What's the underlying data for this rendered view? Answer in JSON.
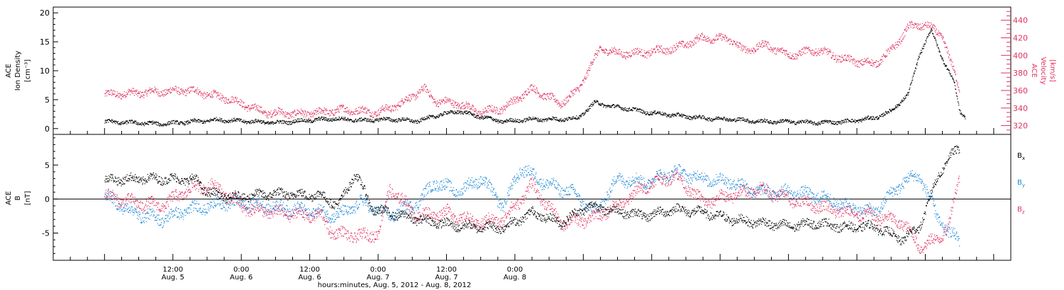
{
  "chart_data": [
    {
      "type": "scatter",
      "panel": "top",
      "title": "",
      "ylabel_left": [
        "ACE",
        "Ion Density",
        "[cm⁻³]"
      ],
      "ylabel_right": [
        "ACE",
        "Velocity",
        "[km/s]"
      ],
      "ylim_left": [
        -1,
        21
      ],
      "ylim_right": [
        310,
        455
      ],
      "left_ticks": [
        "0",
        "5",
        "10",
        "15",
        "20"
      ],
      "left_tick_values": [
        0,
        5,
        10,
        15,
        20
      ],
      "right_ticks": [
        "320",
        "340",
        "360",
        "380",
        "400",
        "420",
        "440"
      ],
      "right_tick_values": [
        320,
        340,
        360,
        380,
        400,
        420,
        440
      ],
      "series": [
        {
          "name": "Ion Density",
          "axis": "left",
          "color": "#000000",
          "keyframes": [
            [
              0,
              1.2
            ],
            [
              10,
              0.8
            ],
            [
              20,
              1.5
            ],
            [
              30,
              1.0
            ],
            [
              40,
              1.7
            ],
            [
              45,
              1.4
            ],
            [
              50,
              1.6
            ],
            [
              55,
              1.3
            ],
            [
              58,
              2.2
            ],
            [
              62,
              3.0
            ],
            [
              66,
              2.0
            ],
            [
              70,
              1.2
            ],
            [
              75,
              1.6
            ],
            [
              80,
              1.6
            ],
            [
              83,
              1.8
            ],
            [
              86,
              4.5
            ],
            [
              89,
              3.8
            ],
            [
              92,
              3.4
            ],
            [
              95,
              2.8
            ],
            [
              100,
              2.3
            ],
            [
              105,
              1.8
            ],
            [
              110,
              1.6
            ],
            [
              115,
              1.2
            ],
            [
              120,
              1.2
            ],
            [
              125,
              1.0
            ],
            [
              130,
              1.2
            ],
            [
              135,
              1.8
            ],
            [
              138,
              3.0
            ],
            [
              141,
              6.0
            ],
            [
              143,
              13.0
            ],
            [
              145,
              17.0
            ],
            [
              147,
              12.0
            ],
            [
              149,
              8.0
            ],
            [
              150,
              3.0
            ],
            [
              151,
              2.0
            ]
          ]
        },
        {
          "name": "Velocity",
          "axis": "right",
          "color": "#e0325f",
          "keyframes": [
            [
              0,
              355
            ],
            [
              8,
              358
            ],
            [
              15,
              360
            ],
            [
              22,
              350
            ],
            [
              28,
              335
            ],
            [
              35,
              333
            ],
            [
              42,
              338
            ],
            [
              48,
              335
            ],
            [
              52,
              345
            ],
            [
              56,
              362
            ],
            [
              58,
              348
            ],
            [
              62,
              345
            ],
            [
              66,
              335
            ],
            [
              70,
              340
            ],
            [
              75,
              362
            ],
            [
              80,
              345
            ],
            [
              83,
              360
            ],
            [
              85,
              385
            ],
            [
              87,
              408
            ],
            [
              90,
              402
            ],
            [
              95,
              403
            ],
            [
              100,
              408
            ],
            [
              105,
              420
            ],
            [
              110,
              418
            ],
            [
              112,
              405
            ],
            [
              116,
              412
            ],
            [
              120,
              400
            ],
            [
              125,
              406
            ],
            [
              130,
              395
            ],
            [
              135,
              390
            ],
            [
              138,
              405
            ],
            [
              141,
              432
            ],
            [
              144,
              435
            ],
            [
              147,
              422
            ],
            [
              149,
              380
            ],
            [
              150,
              360
            ]
          ]
        }
      ]
    },
    {
      "type": "scatter",
      "panel": "bottom",
      "title": "",
      "ylabel_left": [
        "ACE",
        "B",
        "[nT]"
      ],
      "ylim": [
        -9,
        9.5
      ],
      "left_ticks": [
        "-5",
        "0",
        "5"
      ],
      "left_tick_values": [
        -5,
        0,
        5
      ],
      "series": [
        {
          "name": "Bx",
          "color": "#000000",
          "keyframes": [
            [
              0,
              2.8
            ],
            [
              8,
              3.0
            ],
            [
              16,
              2.8
            ],
            [
              18,
              1.0
            ],
            [
              22,
              0.2
            ],
            [
              30,
              0.8
            ],
            [
              38,
              0.5
            ],
            [
              41,
              -1.0
            ],
            [
              44,
              3.8
            ],
            [
              47,
              -1.5
            ],
            [
              55,
              -3.0
            ],
            [
              62,
              -4.0
            ],
            [
              70,
              -4.2
            ],
            [
              75,
              -2.0
            ],
            [
              80,
              -3.5
            ],
            [
              85,
              -1.0
            ],
            [
              90,
              -1.8
            ],
            [
              95,
              -2.5
            ],
            [
              100,
              -1.5
            ],
            [
              105,
              -2.0
            ],
            [
              110,
              -3.0
            ],
            [
              115,
              -3.5
            ],
            [
              120,
              -4.0
            ],
            [
              125,
              -3.5
            ],
            [
              130,
              -4.2
            ],
            [
              135,
              -4.0
            ],
            [
              140,
              -6.0
            ],
            [
              143,
              -4.0
            ],
            [
              146,
              3.0
            ],
            [
              148,
              6.0
            ],
            [
              150,
              7.5
            ]
          ]
        },
        {
          "name": "By",
          "color": "#1e88d8",
          "keyframes": [
            [
              0,
              0.5
            ],
            [
              5,
              -2.0
            ],
            [
              10,
              -3.0
            ],
            [
              15,
              -1.5
            ],
            [
              22,
              -0.5
            ],
            [
              28,
              -1.0
            ],
            [
              33,
              -1.5
            ],
            [
              38,
              -2.0
            ],
            [
              41,
              -2.5
            ],
            [
              45,
              -0.5
            ],
            [
              50,
              -2.5
            ],
            [
              55,
              -0.5
            ],
            [
              58,
              2.5
            ],
            [
              62,
              1.0
            ],
            [
              66,
              3.0
            ],
            [
              70,
              -1.0
            ],
            [
              73,
              4.5
            ],
            [
              78,
              2.0
            ],
            [
              82,
              1.0
            ],
            [
              86,
              -2.0
            ],
            [
              90,
              3.0
            ],
            [
              95,
              2.5
            ],
            [
              100,
              4.0
            ],
            [
              105,
              3.0
            ],
            [
              110,
              2.5
            ],
            [
              115,
              1.0
            ],
            [
              120,
              1.0
            ],
            [
              125,
              0.5
            ],
            [
              130,
              -1.0
            ],
            [
              135,
              -2.0
            ],
            [
              140,
              2.5
            ],
            [
              143,
              3.5
            ],
            [
              146,
              -2.5
            ],
            [
              148,
              -5.0
            ],
            [
              150,
              -6.0
            ]
          ]
        },
        {
          "name": "Bz",
          "color": "#e0325f",
          "keyframes": [
            [
              0,
              0.5
            ],
            [
              5,
              -0.5
            ],
            [
              10,
              -1.0
            ],
            [
              15,
              1.5
            ],
            [
              19,
              2.0
            ],
            [
              25,
              -1.5
            ],
            [
              30,
              -2.0
            ],
            [
              38,
              -2.5
            ],
            [
              40,
              -5.0
            ],
            [
              45,
              -5.5
            ],
            [
              48,
              -5.0
            ],
            [
              50,
              1.5
            ],
            [
              55,
              -2.5
            ],
            [
              60,
              -2.0
            ],
            [
              65,
              -3.5
            ],
            [
              70,
              -3.0
            ],
            [
              75,
              2.0
            ],
            [
              80,
              -3.5
            ],
            [
              85,
              -3.0
            ],
            [
              90,
              -1.0
            ],
            [
              95,
              2.0
            ],
            [
              100,
              3.5
            ],
            [
              105,
              -0.5
            ],
            [
              110,
              0.5
            ],
            [
              115,
              1.5
            ],
            [
              120,
              0.0
            ],
            [
              125,
              -1.0
            ],
            [
              130,
              -2.0
            ],
            [
              135,
              -2.5
            ],
            [
              140,
              -3.5
            ],
            [
              143,
              -7.0
            ],
            [
              146,
              -6.0
            ],
            [
              148,
              -4.0
            ],
            [
              150,
              3.5
            ]
          ]
        }
      ],
      "legend": [
        "Bx",
        "By",
        "Bz"
      ],
      "legend_subscripts": [
        "x",
        "y",
        "z"
      ],
      "legend_base": "B",
      "legend_placement": "right"
    }
  ],
  "x_axis": {
    "range_hours": [
      -9,
      159
    ],
    "xlabel": "hours:minutes, Aug.  5, 2012 - Aug.  8, 2012",
    "major_ticks": [
      {
        "hours": 12,
        "time": "12:00",
        "date": "Aug. 5"
      },
      {
        "hours": 24,
        "time": "0:00",
        "date": "Aug. 6"
      },
      {
        "hours": 36,
        "time": "12:00",
        "date": "Aug. 6"
      },
      {
        "hours": 48,
        "time": "0:00",
        "date": "Aug. 7"
      },
      {
        "hours": 60,
        "time": "12:00",
        "date": "Aug. 7"
      },
      {
        "hours": 72,
        "time": "0:00",
        "date": "Aug. 8"
      }
    ],
    "minor_tick_step_hours": 3
  }
}
